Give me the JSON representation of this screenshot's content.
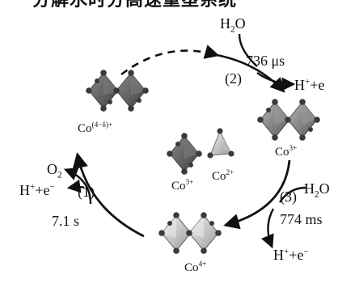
{
  "top_caption_fragment": "分解水时分高速重塑系统",
  "cycle": {
    "states": {
      "state_mixed": "Co(4−δ)+",
      "state_co3_top": "Co3+",
      "state_co4": "Co4+",
      "center_co3": "Co3+",
      "center_co2": "Co2+"
    },
    "steps": {
      "step1_label": "(1)",
      "step1_time": "7.1 s",
      "step1_o2": "O2",
      "step1_hplus_e": "H+ + e−",
      "step2_label": "(2)",
      "step2_time": "736 μs",
      "step2_h2o": "H2O",
      "step2_hplus_e": "H+ + e−",
      "step3_label": "(3)",
      "step3_time": "774 ms",
      "step3_h2o": "H2O",
      "step3_hplus_e": "H+ + e−"
    }
  },
  "colors": {
    "arrow": "#111111",
    "octahedron_dark": "#5a5a5a",
    "octahedron_mid": "#8c8c8c",
    "octahedron_light": "#d9d9d9",
    "atom": "#3a3a3a"
  },
  "icons": [
    "octahedron-dimer-icon",
    "tetrahedron-icon"
  ]
}
